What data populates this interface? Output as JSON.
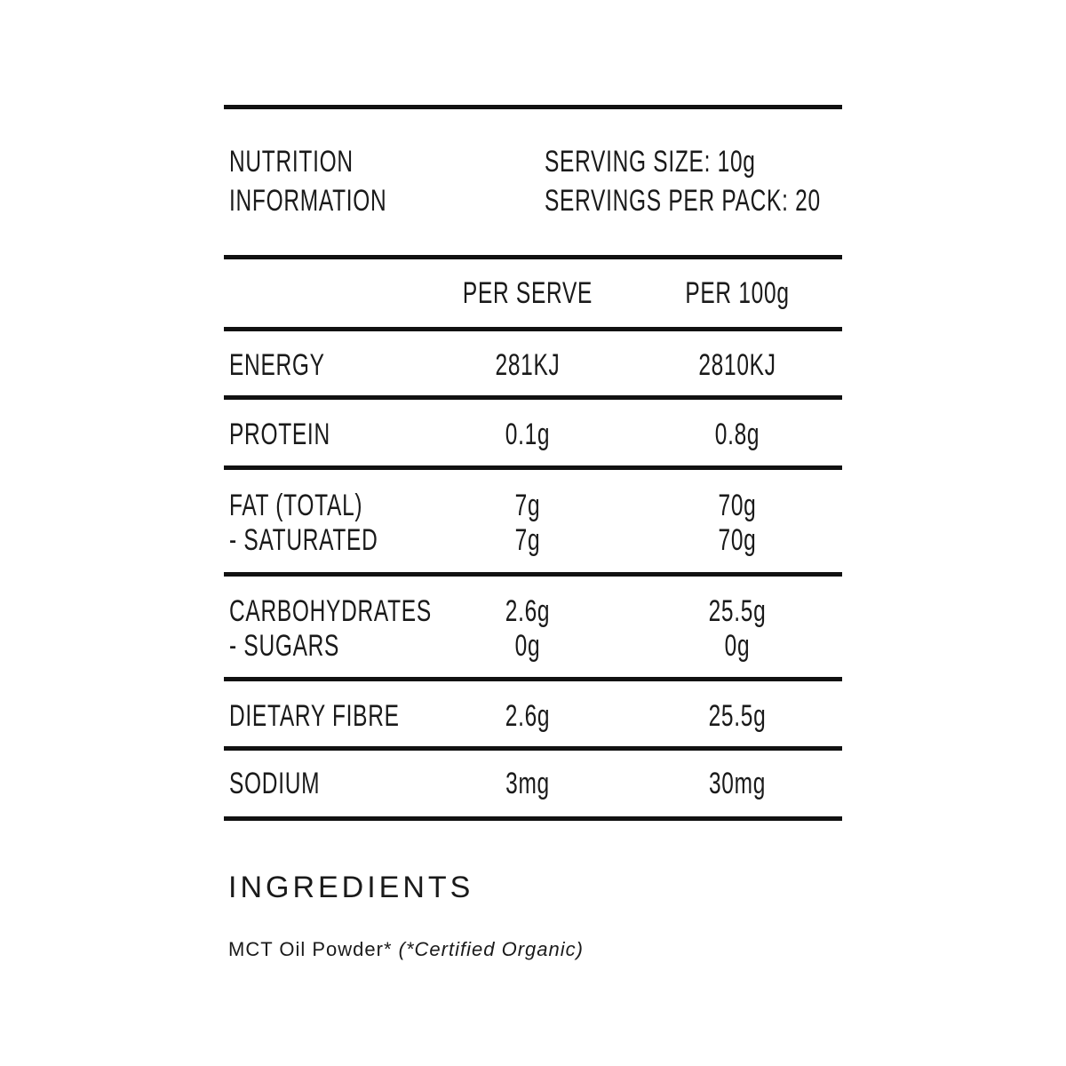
{
  "header": {
    "title": [
      "NUTRITION",
      "INFORMATION"
    ],
    "serving": [
      "SERVING SIZE: 10g",
      "SERVINGS PER PACK: 20"
    ]
  },
  "table": {
    "columns": [
      "PER SERVE",
      "PER 100g"
    ],
    "rows": [
      {
        "labels": [
          "ENERGY"
        ],
        "per_serve": [
          "281KJ"
        ],
        "per_100g": [
          "2810KJ"
        ]
      },
      {
        "labels": [
          "PROTEIN"
        ],
        "per_serve": [
          "0.1g"
        ],
        "per_100g": [
          "0.8g"
        ]
      },
      {
        "labels": [
          "FAT (TOTAL)",
          "- SATURATED"
        ],
        "per_serve": [
          "7g",
          "7g"
        ],
        "per_100g": [
          "70g",
          "70g"
        ]
      },
      {
        "labels": [
          "CARBOHYDRATES",
          "- SUGARS"
        ],
        "per_serve": [
          "2.6g",
          "0g"
        ],
        "per_100g": [
          "25.5g",
          "0g"
        ]
      },
      {
        "labels": [
          "DIETARY FIBRE"
        ],
        "per_serve": [
          "2.6g"
        ],
        "per_100g": [
          "25.5g"
        ]
      },
      {
        "labels": [
          "SODIUM"
        ],
        "per_serve": [
          "3mg"
        ],
        "per_100g": [
          "30mg"
        ]
      }
    ]
  },
  "ingredients": {
    "title": "INGREDIENTS",
    "text": "MCT Oil Powder*",
    "note": "(*Certified Organic)"
  }
}
